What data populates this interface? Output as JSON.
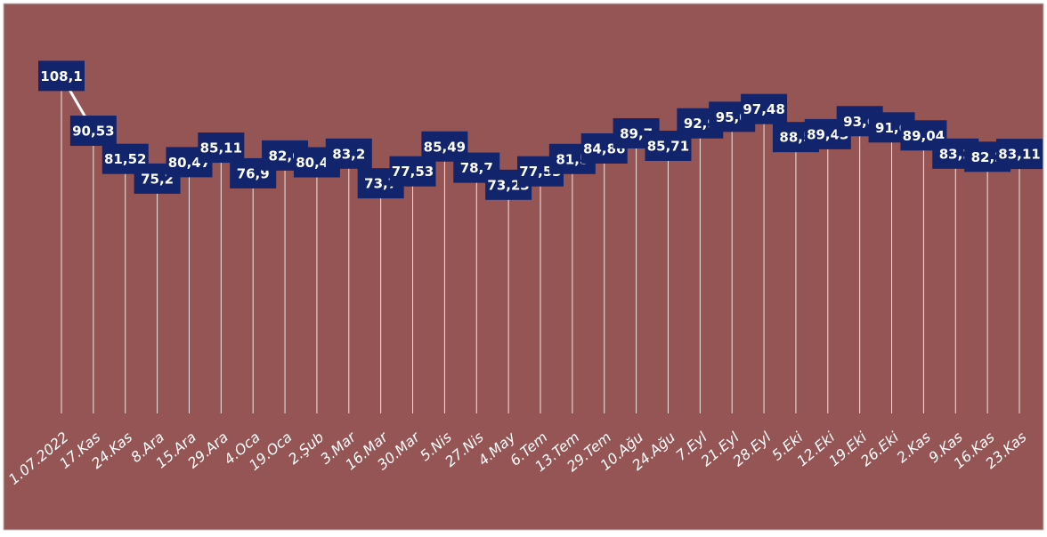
{
  "chart_data": {
    "type": "line",
    "categories": [
      "1.07.2022",
      "17.Kas",
      "24.Kas",
      "8.Ara",
      "15.Ara",
      "29.Ara",
      "4.Oca",
      "19.Oca",
      "2.Şub",
      "3.Mar",
      "16.Mar",
      "30.Mar",
      "5.Nis",
      "27.Nis",
      "4.May",
      "6.Tem",
      "13.Tem",
      "29.Tem",
      "10.Ağu",
      "24.Ağu",
      "7.Eyl",
      "21.Eyl",
      "28.Eyl",
      "5.Eki",
      "12.Eki",
      "19.Eki",
      "26.Eki",
      "2.Kas",
      "9.Kas",
      "16.Kas",
      "23.Kas"
    ],
    "values": [
      108.1,
      90.53,
      81.52,
      75.2,
      80.47,
      85.11,
      76.9,
      82.6,
      80.43,
      83.2,
      73.7,
      77.53,
      85.49,
      78.7,
      73.23,
      77.53,
      81.5,
      84.86,
      89.7,
      85.71,
      92.9,
      95.0,
      97.48,
      88.5,
      89.43,
      93.6,
      91.6,
      89.04,
      83.2,
      82.2,
      83.11
    ],
    "value_labels": [
      "108,1",
      "90,53",
      "81,52",
      "75,2",
      "80,47",
      "85,11",
      "76,9",
      "82,6",
      "80,43",
      "83,2",
      "73,7",
      "77,53",
      "85,49",
      "78,7",
      "73,23",
      "77,53",
      "81,5",
      "84,86",
      "89,7",
      "85,71",
      "92,9",
      "95,0",
      "97,48",
      "88,5",
      "89,43",
      "93,6",
      "91,6",
      "89,04",
      "83,2",
      "82,2",
      "83,11"
    ],
    "color": "#ffffff",
    "label_color": "#12246b",
    "background": "#955555",
    "ylim": [
      0,
      125
    ]
  }
}
